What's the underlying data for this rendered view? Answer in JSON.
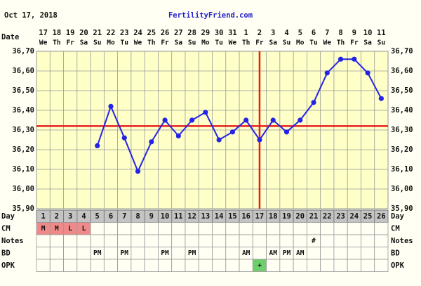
{
  "chart_data": {
    "type": "line",
    "title": "Oct 17, 2018",
    "site": "FertilityFriend.com",
    "date_label": "Date",
    "day_label": "Day",
    "dates": [
      "17",
      "18",
      "19",
      "20",
      "21",
      "22",
      "23",
      "24",
      "25",
      "26",
      "27",
      "28",
      "29",
      "30",
      "31",
      "1",
      "2",
      "3",
      "4",
      "5",
      "6",
      "7",
      "8",
      "9",
      "10",
      "11"
    ],
    "weekdays": [
      "We",
      "Th",
      "Fr",
      "Sa",
      "Su",
      "Mo",
      "Tu",
      "We",
      "Th",
      "Fr",
      "Sa",
      "Su",
      "Mo",
      "Tu",
      "We",
      "Th",
      "Fr",
      "Sa",
      "Su",
      "Mo",
      "Tu",
      "We",
      "Th",
      "Fr",
      "Sa",
      "Su"
    ],
    "categories": [
      "1",
      "2",
      "3",
      "4",
      "5",
      "6",
      "7",
      "8",
      "9",
      "10",
      "11",
      "12",
      "13",
      "14",
      "15",
      "16",
      "17",
      "18",
      "19",
      "20",
      "21",
      "22",
      "23",
      "24",
      "25",
      "26"
    ],
    "series": [
      {
        "name": "Temperature",
        "color": "#2424e6",
        "values": [
          null,
          null,
          null,
          null,
          36.22,
          36.42,
          36.26,
          36.09,
          36.24,
          36.35,
          36.27,
          36.35,
          36.39,
          36.25,
          36.29,
          36.35,
          36.25,
          36.35,
          36.29,
          36.35,
          36.44,
          36.59,
          36.66,
          36.66,
          36.59,
          36.46
        ]
      }
    ],
    "coverline": 36.32,
    "ovulation_day": 17,
    "marker_color": "#e61e1e",
    "ylim": [
      35.9,
      36.7
    ],
    "yticks": [
      {
        "value": 35.9,
        "label": "35,90"
      },
      {
        "value": 36.0,
        "label": "36,00"
      },
      {
        "value": 36.1,
        "label": "36,10"
      },
      {
        "value": 36.2,
        "label": "36,20"
      },
      {
        "value": 36.3,
        "label": "36,30"
      },
      {
        "value": 36.4,
        "label": "36,40"
      },
      {
        "value": 36.5,
        "label": "36,50"
      },
      {
        "value": 36.6,
        "label": "36,60"
      },
      {
        "value": 36.7,
        "label": "36,70"
      }
    ],
    "grid": true,
    "rows": [
      {
        "label": "CM",
        "color": "#f08a8a",
        "values": [
          "M",
          "M",
          "L",
          "L",
          null,
          null,
          null,
          null,
          null,
          null,
          null,
          null,
          null,
          null,
          null,
          null,
          null,
          null,
          null,
          null,
          null,
          null,
          null,
          null,
          null,
          null
        ]
      },
      {
        "label": "Notes",
        "values": [
          null,
          null,
          null,
          null,
          null,
          null,
          null,
          null,
          null,
          null,
          null,
          null,
          null,
          null,
          null,
          null,
          null,
          null,
          null,
          null,
          "#",
          null,
          null,
          null,
          null,
          null
        ]
      },
      {
        "label": "BD",
        "values": [
          null,
          null,
          null,
          null,
          "PM",
          null,
          "PM",
          null,
          null,
          "PM",
          null,
          "PM",
          null,
          null,
          null,
          "AM",
          null,
          "AM",
          "PM",
          "AM",
          null,
          null,
          null,
          null,
          null,
          null
        ]
      },
      {
        "label": "OPK",
        "color": "#6ccf6c",
        "values": [
          null,
          null,
          null,
          null,
          null,
          null,
          null,
          null,
          null,
          null,
          null,
          null,
          null,
          null,
          null,
          null,
          "+",
          null,
          null,
          null,
          null,
          null,
          null,
          null,
          null,
          null
        ]
      }
    ]
  }
}
